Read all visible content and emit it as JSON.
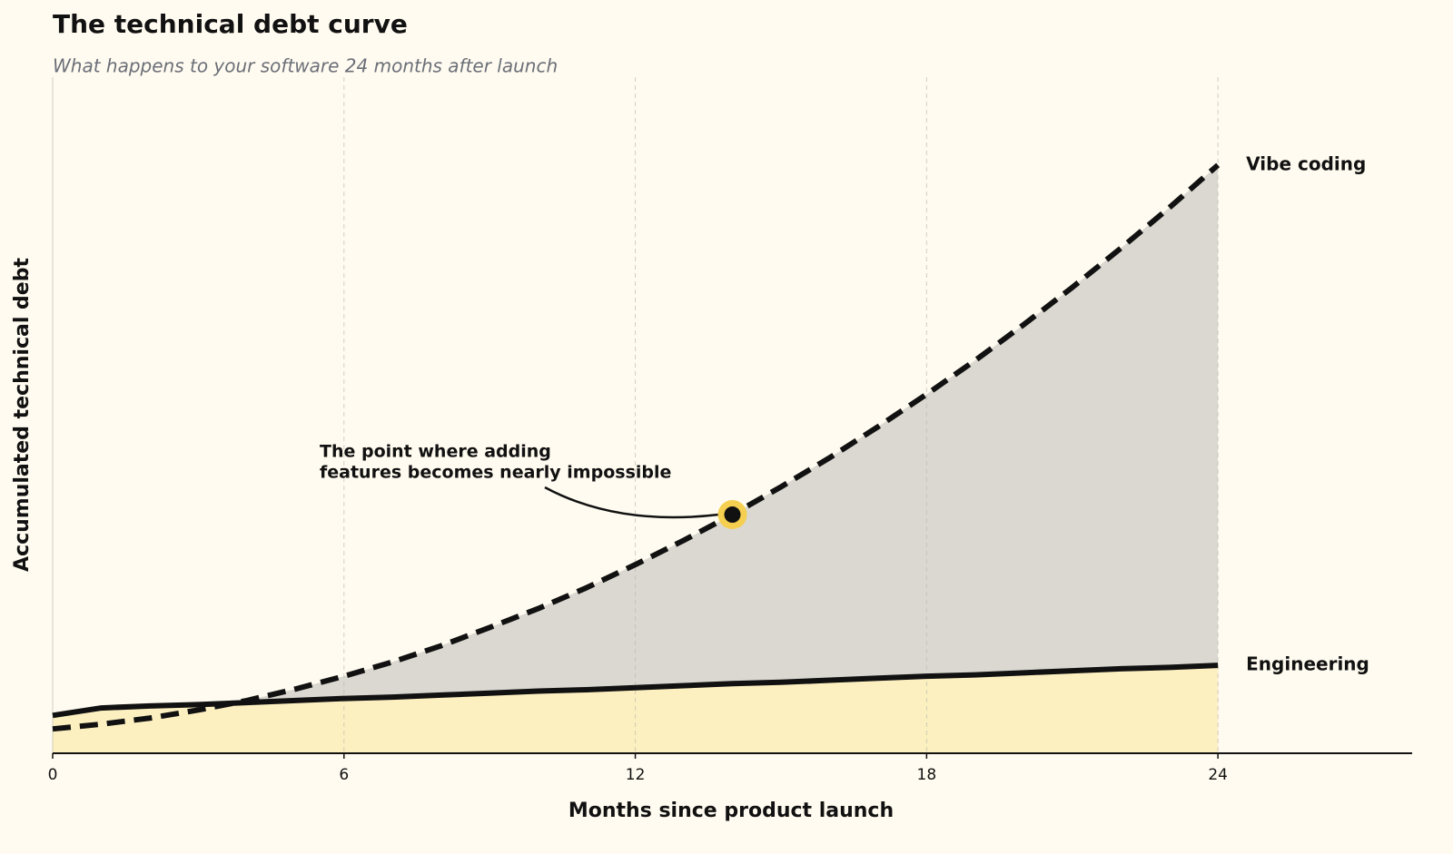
{
  "chart_data": {
    "type": "line",
    "title": "The technical debt curve",
    "subtitle": "What happens to your software 24 months after launch",
    "xlabel": "Months since product launch",
    "ylabel": "Accumulated technical debt",
    "x": [
      0,
      1,
      2,
      3,
      4,
      5,
      6,
      7,
      8,
      9,
      10,
      11,
      12,
      13,
      14,
      15,
      16,
      17,
      18,
      19,
      20,
      21,
      22,
      23,
      24
    ],
    "series": [
      {
        "name": "Vibe coding",
        "color": "#111111",
        "fill": "#dad8d0",
        "dashed": true,
        "values": [
          3.6,
          4.3,
          5.2,
          6.4,
          7.8,
          9.5,
          11.4,
          13.5,
          15.9,
          18.6,
          21.4,
          24.5,
          27.9,
          31.5,
          35.3,
          39.4,
          43.7,
          48.3,
          53.1,
          58.1,
          63.4,
          68.9,
          74.7,
          80.7,
          87.0
        ]
      },
      {
        "name": "Engineering",
        "color": "#111111",
        "fill": "#fdf0c0",
        "dashed": false,
        "values": [
          5.6,
          6.7,
          7.0,
          7.2,
          7.5,
          7.8,
          8.1,
          8.3,
          8.6,
          8.9,
          9.2,
          9.4,
          9.7,
          10.0,
          10.3,
          10.5,
          10.8,
          11.1,
          11.4,
          11.6,
          11.9,
          12.2,
          12.5,
          12.7,
          13.0
        ]
      }
    ],
    "annotation": {
      "lines": [
        "The point where adding",
        "features becomes nearly impossible"
      ],
      "series": 0,
      "index": 14,
      "color": "#f5cf4f"
    },
    "xlim": [
      0,
      28
    ],
    "ylim": [
      0,
      100
    ],
    "xticks": [
      0,
      6,
      12,
      18,
      24
    ],
    "grid": true
  }
}
